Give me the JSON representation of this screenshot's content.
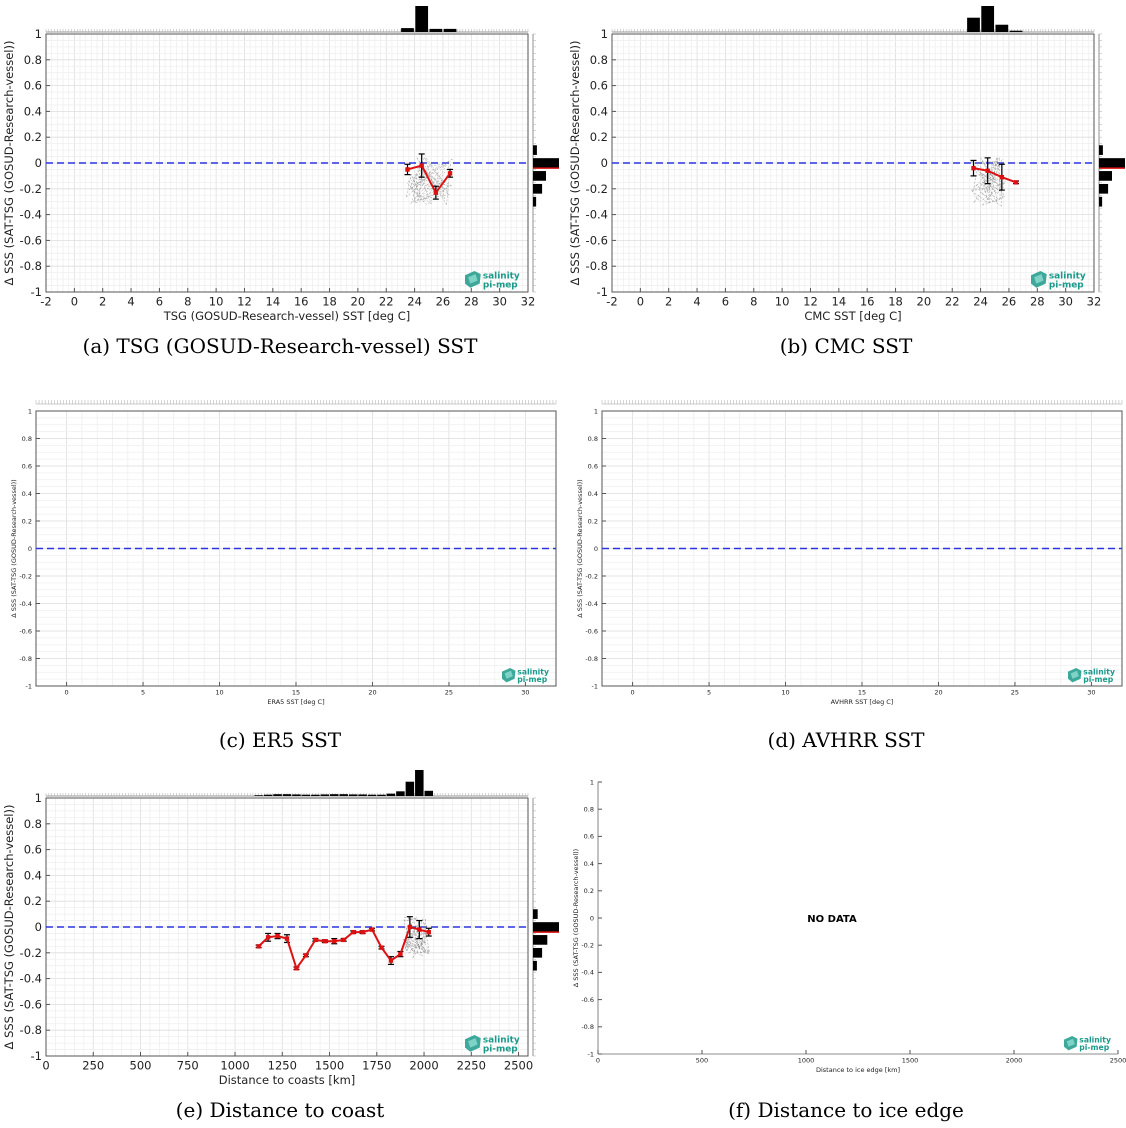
{
  "logo": {
    "line1": "salinity",
    "line2": "pi-mep",
    "color": "#1a9a8a"
  },
  "colors": {
    "zero_line": "#2a35e0",
    "mean_line": "#dd1111",
    "bars": "#000000",
    "scatter": "#777777"
  },
  "chart_data": [
    {
      "id": "a",
      "type": "line",
      "caption": "(a) TSG (GOSUD-Research-vessel) SST",
      "xlabel": "TSG (GOSUD-Research-vessel) SST [deg C]",
      "ylabel": "Δ SSS (SAT-TSG (GOSUD-Research-vessel))",
      "xlim": [
        -2,
        32
      ],
      "ylim": [
        -1,
        1
      ],
      "xticks": [
        -2,
        0,
        2,
        4,
        6,
        8,
        10,
        12,
        14,
        16,
        18,
        20,
        22,
        24,
        26,
        28,
        30,
        32
      ],
      "yticks": [
        -1,
        -0.8,
        -0.6,
        -0.4,
        -0.2,
        0,
        0.2,
        0.4,
        0.6,
        0.8,
        1
      ],
      "grid": true,
      "series": [
        {
          "x": [
            23.5,
            24.5,
            25.5,
            26.5
          ],
          "y": [
            -0.05,
            -0.02,
            -0.23,
            -0.08
          ],
          "err": [
            0.04,
            0.09,
            0.05,
            0.03
          ]
        }
      ],
      "scatter_range": {
        "x": [
          23.3,
          26.7
        ],
        "y": [
          -0.33,
          0.05
        ]
      },
      "top_hist": {
        "x": [
          23.5,
          24.5,
          25.5,
          26.5
        ],
        "counts": [
          0.15,
          1.0,
          0.12,
          0.12
        ]
      },
      "right_hist": {
        "y": [
          0.1,
          0,
          -0.1,
          -0.2,
          -0.3
        ],
        "counts": [
          0.15,
          1.0,
          0.5,
          0.35,
          0.12
        ]
      },
      "no_data": ""
    },
    {
      "id": "b",
      "type": "line",
      "caption": "(b) CMC SST",
      "xlabel": "CMC SST [deg C]",
      "ylabel": "Δ SSS (SAT-TSG (GOSUD-Research-vessel))",
      "xlim": [
        -2,
        32
      ],
      "ylim": [
        -1,
        1
      ],
      "xticks": [
        -2,
        0,
        2,
        4,
        6,
        8,
        10,
        12,
        14,
        16,
        18,
        20,
        22,
        24,
        26,
        28,
        30,
        32
      ],
      "yticks": [
        -1,
        -0.8,
        -0.6,
        -0.4,
        -0.2,
        0,
        0.2,
        0.4,
        0.6,
        0.8,
        1
      ],
      "grid": true,
      "series": [
        {
          "x": [
            23.5,
            24.5,
            25.5,
            26.5
          ],
          "y": [
            -0.04,
            -0.06,
            -0.11,
            -0.15
          ],
          "err": [
            0.06,
            0.1,
            0.1,
            0.01
          ]
        }
      ],
      "scatter_range": {
        "x": [
          23.3,
          25.8
        ],
        "y": [
          -0.34,
          0.06
        ]
      },
      "top_hist": {
        "x": [
          23.5,
          24.5,
          25.5,
          26.5
        ],
        "counts": [
          0.55,
          1.0,
          0.28,
          0.05
        ]
      },
      "right_hist": {
        "y": [
          0.1,
          0,
          -0.1,
          -0.2,
          -0.3
        ],
        "counts": [
          0.15,
          1.0,
          0.5,
          0.35,
          0.12
        ]
      },
      "no_data": ""
    },
    {
      "id": "c",
      "type": "line",
      "caption": "(c) ER5 SST",
      "xlabel": "ERA5 SST [deg C]",
      "ylabel": "Δ SSS (SAT-TSG (GOSUD-Research-vessel))",
      "xlim": [
        -2,
        32
      ],
      "ylim": [
        -1,
        1
      ],
      "xticks": [
        0,
        5,
        10,
        15,
        20,
        25,
        30
      ],
      "yticks": [
        -1,
        -0.8,
        -0.6,
        -0.4,
        -0.2,
        0,
        0.2,
        0.4,
        0.6,
        0.8,
        1
      ],
      "grid": true,
      "series": [],
      "top_hist": null,
      "right_hist": null,
      "no_data": ""
    },
    {
      "id": "d",
      "type": "line",
      "caption": "(d) AVHRR SST",
      "xlabel": "AVHRR SST [deg C]",
      "ylabel": "Δ SSS (SAT-TSG (GOSUD-Research-vessel))",
      "xlim": [
        -2,
        32
      ],
      "ylim": [
        -1,
        1
      ],
      "xticks": [
        0,
        5,
        10,
        15,
        20,
        25,
        30
      ],
      "yticks": [
        -1,
        -0.8,
        -0.6,
        -0.4,
        -0.2,
        0,
        0.2,
        0.4,
        0.6,
        0.8,
        1
      ],
      "grid": true,
      "series": [],
      "top_hist": null,
      "right_hist": null,
      "no_data": ""
    },
    {
      "id": "e",
      "type": "line",
      "caption": "(e) Distance to coast",
      "xlabel": "Distance to coasts [km]",
      "ylabel": "Δ SSS (SAT-TSG (GOSUD-Research-vessel))",
      "xlim": [
        0,
        2550
      ],
      "ylim": [
        -1,
        1
      ],
      "xticks": [
        0,
        250,
        500,
        750,
        1000,
        1250,
        1500,
        1750,
        2000,
        2250,
        2500
      ],
      "yticks": [
        -1,
        -0.8,
        -0.6,
        -0.4,
        -0.2,
        0,
        0.2,
        0.4,
        0.6,
        0.8,
        1
      ],
      "grid": true,
      "series": [
        {
          "x": [
            1125,
            1175,
            1225,
            1275,
            1325,
            1375,
            1425,
            1475,
            1525,
            1575,
            1625,
            1675,
            1725,
            1775,
            1825,
            1875,
            1925,
            1975,
            2025
          ],
          "y": [
            -0.15,
            -0.08,
            -0.07,
            -0.09,
            -0.32,
            -0.22,
            -0.1,
            -0.11,
            -0.11,
            -0.1,
            -0.04,
            -0.04,
            -0.02,
            -0.16,
            -0.26,
            -0.21,
            0.0,
            -0.02,
            -0.04
          ],
          "err": [
            0.01,
            0.03,
            0.02,
            0.03,
            0.01,
            0.01,
            0.01,
            0.01,
            0.02,
            0.01,
            0.01,
            0.01,
            0.01,
            0.01,
            0.03,
            0.02,
            0.08,
            0.07,
            0.03
          ]
        }
      ],
      "scatter_range": {
        "x": [
          1890,
          2030
        ],
        "y": [
          -0.25,
          0.08
        ]
      },
      "top_hist": {
        "x": [
          1125,
          1175,
          1225,
          1275,
          1325,
          1375,
          1425,
          1475,
          1525,
          1575,
          1625,
          1675,
          1725,
          1775,
          1825,
          1875,
          1925,
          1975,
          2025
        ],
        "counts": [
          0.03,
          0.05,
          0.07,
          0.07,
          0.06,
          0.05,
          0.05,
          0.06,
          0.07,
          0.07,
          0.06,
          0.06,
          0.05,
          0.05,
          0.09,
          0.18,
          0.55,
          1.0,
          0.2
        ]
      },
      "right_hist": {
        "y": [
          0.1,
          0,
          -0.1,
          -0.2,
          -0.3
        ],
        "counts": [
          0.18,
          1.0,
          0.55,
          0.35,
          0.15
        ]
      },
      "no_data": ""
    },
    {
      "id": "f",
      "type": "line",
      "caption": "(f) Distance to ice edge",
      "xlabel": "Distance to ice edge [km]",
      "ylabel": "Δ SSS (SAT-TSG (GOSUD-Research-vessel))",
      "xlim": [
        0,
        2500
      ],
      "ylim": [
        -1,
        1
      ],
      "xticks": [
        0,
        500,
        1000,
        1500,
        2000,
        2500
      ],
      "yticks": [
        -1,
        -0.8,
        -0.6,
        -0.4,
        -0.2,
        0,
        0.2,
        0.4,
        0.6,
        0.8,
        1
      ],
      "grid": false,
      "series": [],
      "top_hist": null,
      "right_hist": null,
      "no_data": "NO DATA"
    }
  ]
}
